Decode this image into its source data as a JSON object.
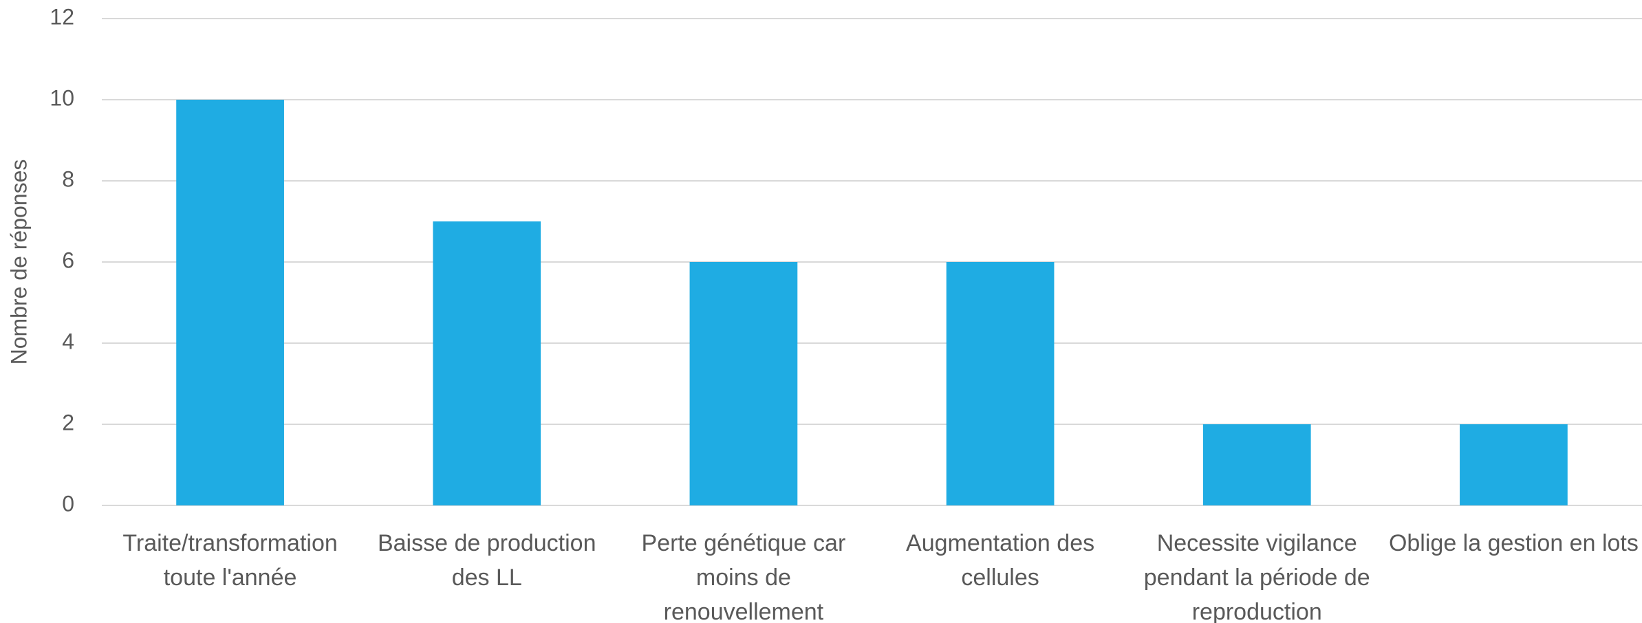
{
  "chart_data": {
    "type": "bar",
    "y_label": "Nombre de réponses",
    "categories": [
      "Traite/transformation toute l'année",
      "Baisse de production des LL",
      "Perte génétique car moins de renouvellement",
      "Augmentation des cellules",
      "Necessite vigilance pendant la période de reproduction",
      "Oblige la gestion en lots"
    ],
    "values": [
      10,
      7,
      6,
      6,
      2,
      2
    ],
    "color": "#1facE3",
    "ylim": [
      0,
      12
    ],
    "yticks": [
      0,
      2,
      4,
      6,
      8,
      10,
      12
    ],
    "grid": true
  }
}
